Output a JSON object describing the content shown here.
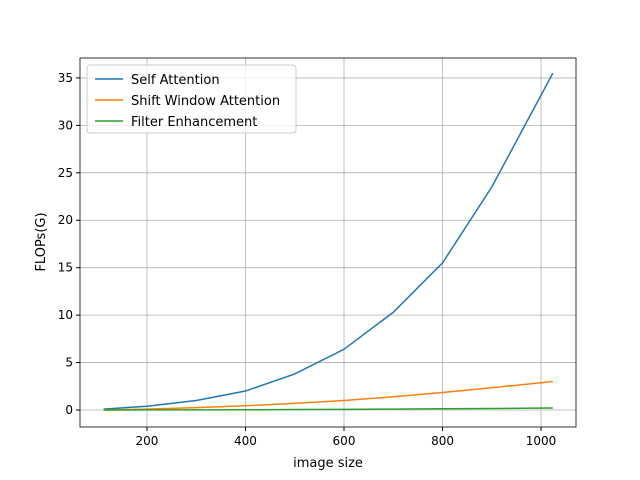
{
  "chart_data": {
    "type": "line",
    "x_label": "image size",
    "y_label": "FLOPs(G)",
    "x": [
      112,
      200,
      300,
      400,
      500,
      600,
      700,
      800,
      900,
      1024
    ],
    "series": [
      {
        "name": "Self Attention",
        "color": "#1f77b4",
        "values": [
          0.1,
          0.4,
          1.0,
          2.0,
          3.8,
          6.4,
          10.3,
          15.5,
          23.5,
          35.5
        ]
      },
      {
        "name": "Shift Window Attention",
        "color": "#ff7f0e",
        "values": [
          0.0,
          0.1,
          0.25,
          0.45,
          0.7,
          1.0,
          1.4,
          1.85,
          2.35,
          3.0
        ]
      },
      {
        "name": "Filter Enhancement",
        "color": "#2ca02c",
        "values": [
          0.0,
          0.01,
          0.02,
          0.03,
          0.05,
          0.07,
          0.1,
          0.13,
          0.16,
          0.21
        ]
      }
    ],
    "xlim": [
      64,
      1071
    ],
    "ylim": [
      -1.79,
      37.1
    ],
    "xticks": [
      200,
      400,
      600,
      800,
      1000
    ],
    "yticks": [
      0,
      5,
      10,
      15,
      20,
      25,
      30,
      35
    ],
    "grid": true,
    "legend": "upper-left"
  }
}
